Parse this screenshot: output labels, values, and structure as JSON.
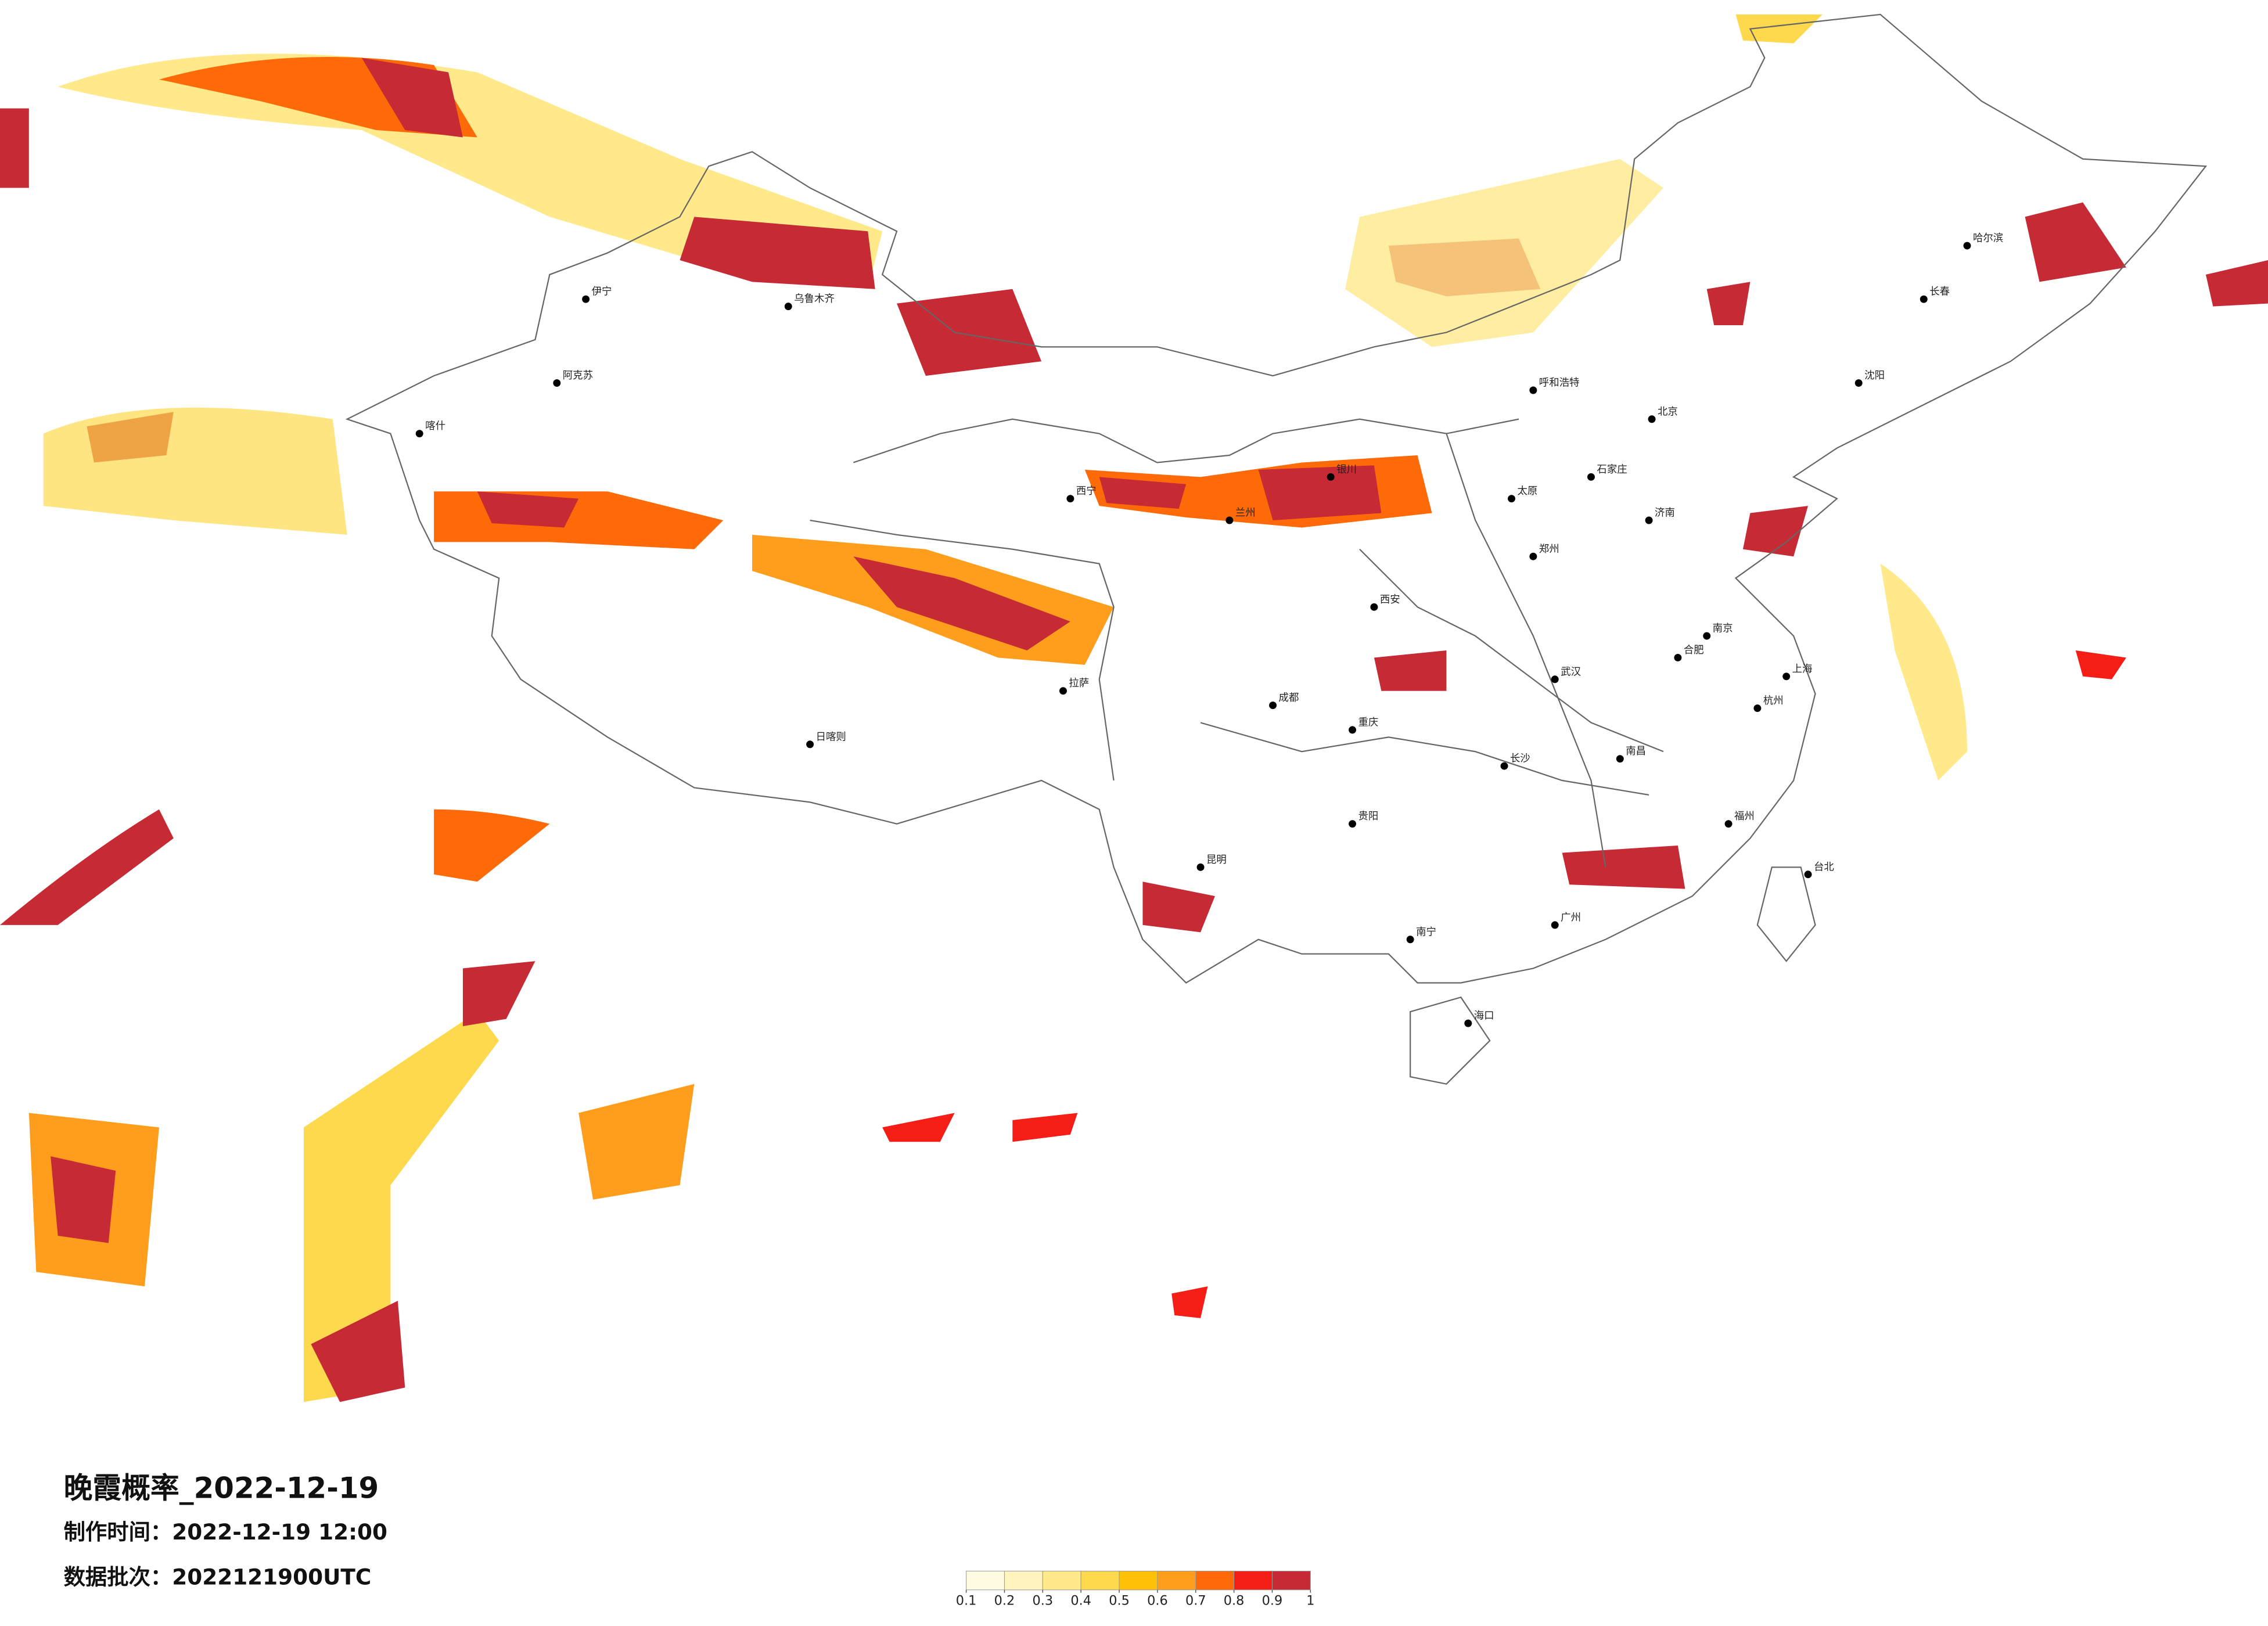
{
  "title": "晚霞概率_2022-12-19",
  "production_time": "制作时间：2022-12-19 12:00",
  "data_batch": "数据批次：2022121900UTC",
  "colorbar": {
    "ticks": [
      0.1,
      0.2,
      0.3,
      0.4,
      0.5,
      0.6,
      0.7,
      0.8,
      0.9,
      1
    ],
    "colors": [
      "#fffbe3",
      "#fff4bd",
      "#ffe98a",
      "#ffd94d",
      "#ffc107",
      "#ff9d1c",
      "#ff6a08",
      "#f51e16",
      "#c52a35"
    ]
  },
  "cities": [
    {
      "name": "北京"
    },
    {
      "name": "上海"
    },
    {
      "name": "广州"
    },
    {
      "name": "哈尔滨"
    },
    {
      "name": "长春"
    },
    {
      "name": "沈阳"
    },
    {
      "name": "呼和浩特"
    },
    {
      "name": "乌鲁木齐"
    },
    {
      "name": "西宁"
    },
    {
      "name": "兰州"
    },
    {
      "name": "银川"
    },
    {
      "name": "西安"
    },
    {
      "name": "郑州"
    },
    {
      "name": "武汉"
    },
    {
      "name": "长沙"
    },
    {
      "name": "南昌"
    },
    {
      "name": "南京"
    },
    {
      "name": "杭州"
    },
    {
      "name": "福州"
    },
    {
      "name": "台北"
    },
    {
      "name": "昆明"
    },
    {
      "name": "贵阳"
    },
    {
      "name": "南宁"
    },
    {
      "name": "海口"
    },
    {
      "name": "重庆"
    },
    {
      "name": "济南"
    },
    {
      "name": "石家庄"
    },
    {
      "name": "太原"
    },
    {
      "name": "合肥"
    },
    {
      "name": "喀什"
    },
    {
      "name": "伊宁"
    },
    {
      "name": "阿克苏"
    },
    {
      "name": "日喀则"
    },
    {
      "name": "拉萨"
    },
    {
      "name": "成都"
    }
  ]
}
